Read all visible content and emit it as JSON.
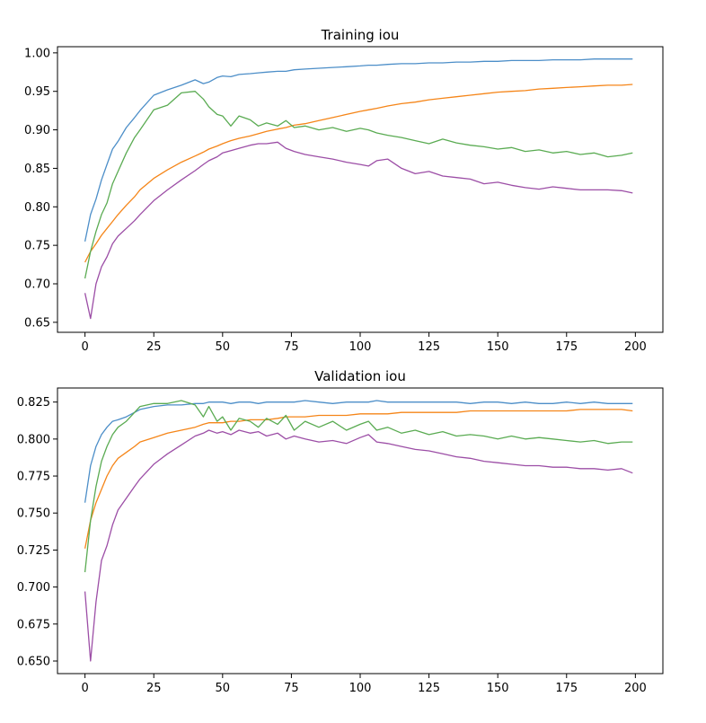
{
  "chart_data": [
    {
      "type": "line",
      "title": "Training iou",
      "xlabel": "",
      "ylabel": "",
      "xlim": [
        -10,
        210
      ],
      "ylim": [
        0.637,
        1.008
      ],
      "x_ticks": [
        0,
        25,
        50,
        75,
        100,
        125,
        150,
        175,
        200
      ],
      "y_ticks": [
        0.65,
        0.7,
        0.75,
        0.8,
        0.85,
        0.9,
        0.95,
        1.0
      ],
      "y_tick_labels": [
        "0.65",
        "0.70",
        "0.75",
        "0.80",
        "0.85",
        "0.90",
        "0.95",
        "1.00"
      ],
      "grid": false,
      "legend": "none",
      "x": [
        0,
        2,
        4,
        6,
        8,
        10,
        12,
        15,
        18,
        20,
        25,
        30,
        35,
        40,
        43,
        45,
        48,
        50,
        53,
        56,
        60,
        63,
        66,
        70,
        73,
        76,
        80,
        85,
        90,
        95,
        100,
        103,
        106,
        110,
        115,
        120,
        125,
        130,
        135,
        140,
        145,
        150,
        155,
        160,
        165,
        170,
        175,
        180,
        185,
        190,
        195,
        199
      ],
      "series": [
        {
          "color": "#4c8ec8",
          "values": [
            0.755,
            0.79,
            0.81,
            0.835,
            0.855,
            0.875,
            0.885,
            0.903,
            0.916,
            0.925,
            0.945,
            0.952,
            0.958,
            0.965,
            0.96,
            0.962,
            0.968,
            0.97,
            0.969,
            0.972,
            0.973,
            0.974,
            0.975,
            0.976,
            0.976,
            0.978,
            0.979,
            0.98,
            0.981,
            0.982,
            0.983,
            0.984,
            0.984,
            0.985,
            0.986,
            0.986,
            0.987,
            0.987,
            0.988,
            0.988,
            0.989,
            0.989,
            0.99,
            0.99,
            0.99,
            0.991,
            0.991,
            0.991,
            0.992,
            0.992,
            0.992,
            0.992
          ]
        },
        {
          "color": "#f58518",
          "values": [
            0.728,
            0.742,
            0.752,
            0.763,
            0.772,
            0.781,
            0.79,
            0.802,
            0.813,
            0.822,
            0.837,
            0.848,
            0.858,
            0.866,
            0.871,
            0.875,
            0.879,
            0.882,
            0.886,
            0.889,
            0.892,
            0.895,
            0.898,
            0.901,
            0.903,
            0.906,
            0.908,
            0.912,
            0.916,
            0.92,
            0.924,
            0.926,
            0.928,
            0.931,
            0.934,
            0.936,
            0.939,
            0.941,
            0.943,
            0.945,
            0.947,
            0.949,
            0.95,
            0.951,
            0.953,
            0.954,
            0.955,
            0.956,
            0.957,
            0.958,
            0.958,
            0.959
          ]
        },
        {
          "color": "#5aab52",
          "values": [
            0.707,
            0.742,
            0.768,
            0.79,
            0.805,
            0.83,
            0.846,
            0.87,
            0.89,
            0.9,
            0.926,
            0.932,
            0.948,
            0.95,
            0.94,
            0.93,
            0.92,
            0.918,
            0.905,
            0.918,
            0.913,
            0.905,
            0.909,
            0.905,
            0.912,
            0.903,
            0.905,
            0.9,
            0.903,
            0.898,
            0.902,
            0.9,
            0.896,
            0.893,
            0.89,
            0.886,
            0.882,
            0.888,
            0.883,
            0.88,
            0.878,
            0.875,
            0.877,
            0.872,
            0.874,
            0.87,
            0.872,
            0.868,
            0.87,
            0.865,
            0.867,
            0.87
          ]
        },
        {
          "color": "#9c4ea6",
          "values": [
            0.688,
            0.655,
            0.7,
            0.722,
            0.735,
            0.752,
            0.762,
            0.772,
            0.782,
            0.79,
            0.808,
            0.822,
            0.835,
            0.847,
            0.855,
            0.86,
            0.865,
            0.87,
            0.873,
            0.876,
            0.88,
            0.882,
            0.882,
            0.884,
            0.876,
            0.872,
            0.868,
            0.865,
            0.862,
            0.858,
            0.855,
            0.853,
            0.86,
            0.862,
            0.85,
            0.843,
            0.846,
            0.84,
            0.838,
            0.836,
            0.83,
            0.832,
            0.828,
            0.825,
            0.823,
            0.826,
            0.824,
            0.822,
            0.822,
            0.822,
            0.821,
            0.818
          ]
        }
      ]
    },
    {
      "type": "line",
      "title": "Validation iou",
      "xlabel": "",
      "ylabel": "",
      "xlim": [
        -10,
        210
      ],
      "ylim": [
        0.6415,
        0.8345
      ],
      "x_ticks": [
        0,
        25,
        50,
        75,
        100,
        125,
        150,
        175,
        200
      ],
      "y_ticks": [
        0.65,
        0.675,
        0.7,
        0.725,
        0.75,
        0.775,
        0.8,
        0.825
      ],
      "y_tick_labels": [
        "0.650",
        "0.675",
        "0.700",
        "0.725",
        "0.750",
        "0.775",
        "0.800",
        "0.825"
      ],
      "grid": false,
      "legend": "none",
      "x": [
        0,
        2,
        4,
        6,
        8,
        10,
        12,
        15,
        18,
        20,
        25,
        30,
        35,
        40,
        43,
        45,
        48,
        50,
        53,
        56,
        60,
        63,
        66,
        70,
        73,
        76,
        80,
        85,
        90,
        95,
        100,
        103,
        106,
        110,
        115,
        120,
        125,
        130,
        135,
        140,
        145,
        150,
        155,
        160,
        165,
        170,
        175,
        180,
        185,
        190,
        195,
        199
      ],
      "series": [
        {
          "color": "#4c8ec8",
          "values": [
            0.757,
            0.782,
            0.795,
            0.803,
            0.808,
            0.812,
            0.813,
            0.815,
            0.818,
            0.82,
            0.822,
            0.823,
            0.823,
            0.824,
            0.824,
            0.825,
            0.825,
            0.825,
            0.824,
            0.825,
            0.825,
            0.824,
            0.825,
            0.825,
            0.825,
            0.825,
            0.826,
            0.825,
            0.824,
            0.825,
            0.825,
            0.825,
            0.826,
            0.825,
            0.825,
            0.825,
            0.825,
            0.825,
            0.825,
            0.824,
            0.825,
            0.825,
            0.824,
            0.825,
            0.824,
            0.824,
            0.825,
            0.824,
            0.825,
            0.824,
            0.824,
            0.824
          ]
        },
        {
          "color": "#f58518",
          "values": [
            0.726,
            0.745,
            0.757,
            0.766,
            0.775,
            0.782,
            0.787,
            0.791,
            0.795,
            0.798,
            0.801,
            0.804,
            0.806,
            0.808,
            0.81,
            0.811,
            0.811,
            0.811,
            0.812,
            0.812,
            0.813,
            0.813,
            0.813,
            0.814,
            0.815,
            0.815,
            0.815,
            0.816,
            0.816,
            0.816,
            0.817,
            0.817,
            0.817,
            0.817,
            0.818,
            0.818,
            0.818,
            0.818,
            0.818,
            0.819,
            0.819,
            0.819,
            0.819,
            0.819,
            0.819,
            0.819,
            0.819,
            0.82,
            0.82,
            0.82,
            0.82,
            0.819
          ]
        },
        {
          "color": "#5aab52",
          "values": [
            0.71,
            0.745,
            0.768,
            0.785,
            0.795,
            0.803,
            0.808,
            0.812,
            0.818,
            0.822,
            0.824,
            0.824,
            0.826,
            0.823,
            0.815,
            0.822,
            0.812,
            0.815,
            0.806,
            0.814,
            0.812,
            0.808,
            0.814,
            0.81,
            0.816,
            0.806,
            0.812,
            0.808,
            0.812,
            0.806,
            0.81,
            0.812,
            0.806,
            0.808,
            0.804,
            0.806,
            0.803,
            0.805,
            0.802,
            0.803,
            0.802,
            0.8,
            0.802,
            0.8,
            0.801,
            0.8,
            0.799,
            0.798,
            0.799,
            0.797,
            0.798,
            0.798
          ]
        },
        {
          "color": "#9c4ea6",
          "values": [
            0.697,
            0.65,
            0.69,
            0.718,
            0.728,
            0.742,
            0.752,
            0.76,
            0.768,
            0.773,
            0.783,
            0.79,
            0.796,
            0.802,
            0.804,
            0.806,
            0.804,
            0.805,
            0.803,
            0.806,
            0.804,
            0.805,
            0.802,
            0.804,
            0.8,
            0.802,
            0.8,
            0.798,
            0.799,
            0.797,
            0.801,
            0.803,
            0.798,
            0.797,
            0.795,
            0.793,
            0.792,
            0.79,
            0.788,
            0.787,
            0.785,
            0.784,
            0.783,
            0.782,
            0.782,
            0.781,
            0.781,
            0.78,
            0.78,
            0.779,
            0.78,
            0.777
          ]
        }
      ]
    }
  ]
}
